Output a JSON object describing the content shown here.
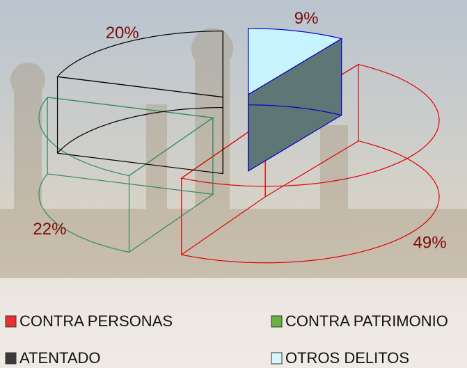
{
  "chart_data": {
    "type": "pie",
    "categories": [
      "CONTRA PERSONAS",
      "CONTRA PATRIMONIO",
      "ATENTADO",
      "OTROS DELITOS"
    ],
    "values": [
      49,
      22,
      20,
      9
    ],
    "value_labels": [
      "49%",
      "22%",
      "20%",
      "9%"
    ],
    "colors": [
      "#e83030",
      "#6ab040",
      "#3a3a3a",
      "#d8f6ff"
    ],
    "edge_colors": [
      "#e00000",
      "#2e8b57",
      "#000000",
      "#0000cc"
    ],
    "fills": [
      "none",
      "none",
      "none",
      "#c8f4ff"
    ],
    "side_fills": [
      "none",
      "none",
      "none",
      "#5f7676"
    ]
  }
}
